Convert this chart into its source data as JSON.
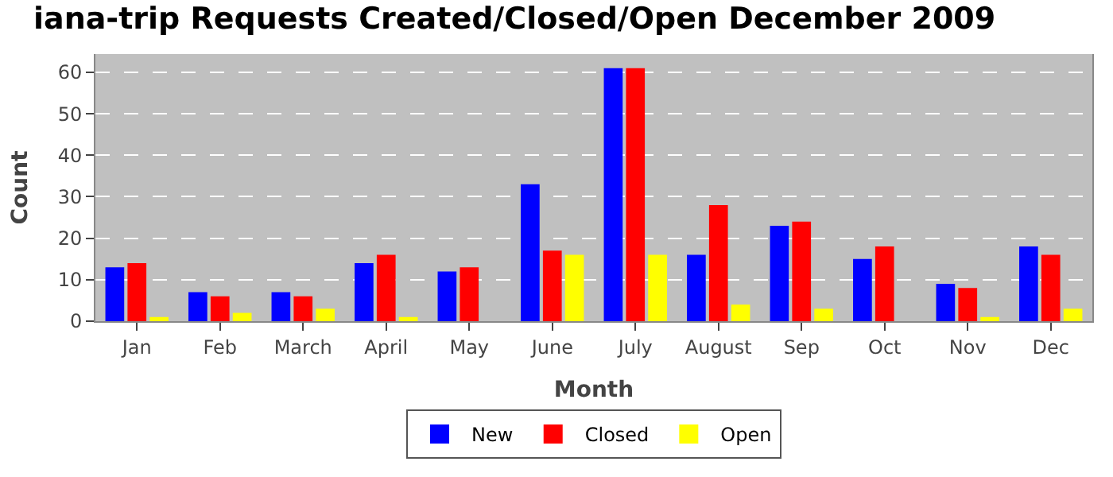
{
  "chart_data": {
    "type": "bar",
    "title": "iana-trip Requests Created/Closed/Open December 2009",
    "xlabel": "Month",
    "ylabel": "Count",
    "categories": [
      "Jan",
      "Feb",
      "March",
      "April",
      "May",
      "June",
      "July",
      "August",
      "Sep",
      "Oct",
      "Nov",
      "Dec"
    ],
    "series": [
      {
        "name": "New",
        "color": "#0000ff",
        "values": [
          13,
          7,
          7,
          14,
          12,
          33,
          61,
          16,
          23,
          15,
          9,
          18
        ]
      },
      {
        "name": "Closed",
        "color": "#ff0000",
        "values": [
          14,
          6,
          6,
          16,
          13,
          17,
          61,
          28,
          24,
          18,
          8,
          16
        ]
      },
      {
        "name": "Open",
        "color": "#ffff00",
        "values": [
          1,
          2,
          3,
          1,
          0,
          16,
          16,
          4,
          3,
          0,
          1,
          3
        ]
      }
    ],
    "ylim": [
      0,
      64.4
    ],
    "yticks": [
      0,
      10,
      20,
      30,
      40,
      50,
      60
    ],
    "grid": "y",
    "legend": "bottom"
  }
}
